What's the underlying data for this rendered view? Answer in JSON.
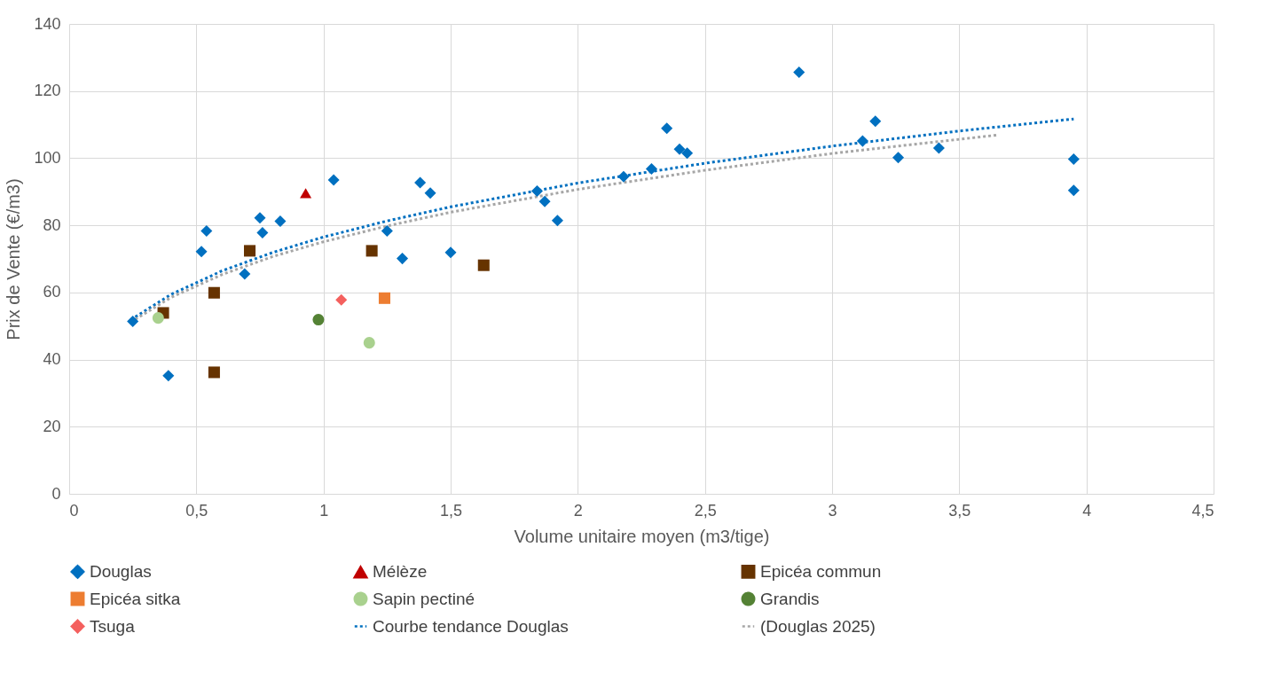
{
  "chart_data": {
    "type": "scatter",
    "xlabel": "Volume unitaire moyen (m3/tige)",
    "ylabel": "Prix de Vente (€/m3)",
    "xlim": [
      0,
      4.5
    ],
    "xticks": [
      0,
      {
        "value": 0.5,
        "label": "0,5"
      },
      1,
      {
        "value": 1.5,
        "label": "1,5"
      },
      2,
      {
        "value": 2.5,
        "label": "2,5"
      },
      3,
      {
        "value": 3.5,
        "label": "3,5"
      },
      4,
      {
        "value": 4.5,
        "label": "4,5"
      }
    ],
    "ylim": [
      0,
      140
    ],
    "yticks": [
      0,
      20,
      40,
      60,
      80,
      100,
      120,
      140
    ],
    "grid": true,
    "legend": "bottom",
    "series": [
      {
        "name": "Douglas",
        "type": "scatter",
        "marker": "diamond",
        "color": "#0070c0",
        "x": [
          0.25,
          0.39,
          0.52,
          0.54,
          0.69,
          0.75,
          0.76,
          0.83,
          1.04,
          1.25,
          1.31,
          1.38,
          1.42,
          1.5,
          1.84,
          1.87,
          1.92,
          2.18,
          2.29,
          2.35,
          2.4,
          2.43,
          2.87,
          3.12,
          3.17,
          3.26,
          3.42,
          3.95,
          3.95
        ],
        "values": [
          51.4,
          35.2,
          72.2,
          78.3,
          65.5,
          82.2,
          77.8,
          81.2,
          93.5,
          78.3,
          70.1,
          92.7,
          89.6,
          71.9,
          90.2,
          87.1,
          81.4,
          94.5,
          96.8,
          108.9,
          102.7,
          101.5,
          125.6,
          105.1,
          111,
          100.2,
          103,
          99.7,
          90.4
        ]
      },
      {
        "name": "Mélèze",
        "type": "scatter",
        "marker": "triangle",
        "color": "#c00000",
        "x": [
          0.93
        ],
        "values": [
          89.6
        ]
      },
      {
        "name": "Epicéa commun",
        "type": "scatter",
        "marker": "square",
        "color": "#663300",
        "x": [
          0.37,
          0.57,
          0.57,
          0.71,
          1.19,
          1.63
        ],
        "values": [
          53.9,
          36.2,
          59.9,
          72.4,
          72.4,
          68.1
        ]
      },
      {
        "name": "Epicéa sitka",
        "type": "scatter",
        "marker": "square",
        "color": "#ed7d31",
        "x": [
          1.24
        ],
        "values": [
          58.3
        ]
      },
      {
        "name": "Sapin pectiné",
        "type": "scatter",
        "marker": "circle",
        "color": "#a9d18e",
        "x": [
          0.35,
          1.18
        ],
        "values": [
          52.4,
          45
        ]
      },
      {
        "name": "Grandis",
        "type": "scatter",
        "marker": "circle",
        "color": "#548235",
        "x": [
          0.98
        ],
        "values": [
          51.9
        ]
      },
      {
        "name": "Tsuga",
        "type": "scatter",
        "marker": "diamond",
        "color": "#f4605e",
        "x": [
          1.07
        ],
        "values": [
          57.8
        ]
      },
      {
        "name": "Courbe tendance Douglas",
        "type": "line",
        "line_style": "dotted",
        "color": "#0070c0",
        "x": [
          0.26,
          0.4,
          0.6,
          0.8,
          1,
          1.25,
          1.5,
          2,
          2.5,
          3,
          3.5,
          3.95
        ],
        "values": [
          52.7,
          59.4,
          66.4,
          71.9,
          76.5,
          81.3,
          85.5,
          92.6,
          98.5,
          103.6,
          108.1,
          111.7
        ]
      },
      {
        "name": "(Douglas 2025)",
        "type": "line",
        "line_style": "dotted",
        "color": "#a6a6a6",
        "x": [
          0.26,
          0.4,
          0.6,
          0.8,
          1,
          1.25,
          1.5,
          2,
          2.5,
          3,
          3.65
        ],
        "values": [
          52,
          58.5,
          65.3,
          70.7,
          75.1,
          79.8,
          83.9,
          90.7,
          96.4,
          101.4,
          106.9
        ]
      }
    ]
  }
}
